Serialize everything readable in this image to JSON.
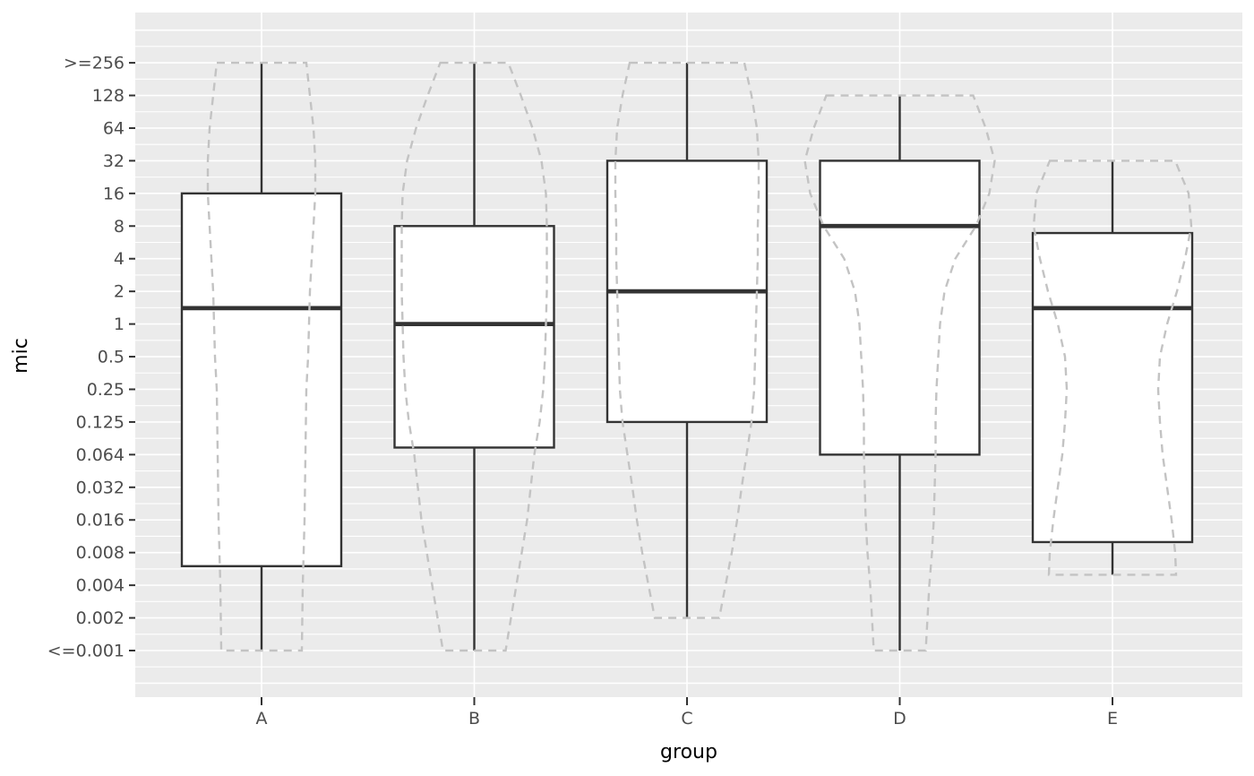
{
  "chart_data": {
    "type": "boxplot",
    "overlay": "violin-outline-dashed",
    "title": "",
    "xlabel": "group",
    "ylabel": "mic",
    "legend": false,
    "grid": true,
    "categories": [
      "A",
      "B",
      "C",
      "D",
      "E"
    ],
    "y_axis": {
      "scale": "log2-mic-dilution-series",
      "tick_values": [
        0.001,
        0.002,
        0.004,
        0.008,
        0.016,
        0.032,
        0.064,
        0.125,
        0.25,
        0.5,
        1,
        2,
        4,
        8,
        16,
        32,
        64,
        128,
        256
      ],
      "tick_labels": [
        "<=0.001",
        "0.002",
        "0.004",
        "0.008",
        "0.016",
        "0.032",
        "0.064",
        "0.125",
        "0.25",
        "0.5",
        "1",
        "2",
        "4",
        "8",
        "16",
        "32",
        "64",
        "128",
        ">=256"
      ]
    },
    "boxplots": [
      {
        "group": "A",
        "whisker_low": 0.001,
        "q1": 0.006,
        "median": 1.4,
        "q3": 16,
        "whisker_high": 256
      },
      {
        "group": "B",
        "whisker_low": 0.001,
        "q1": 0.074,
        "median": 1,
        "q3": 8,
        "whisker_high": 256
      },
      {
        "group": "C",
        "whisker_low": 0.002,
        "q1": 0.125,
        "median": 2,
        "q3": 32,
        "whisker_high": 256
      },
      {
        "group": "D",
        "whisker_low": 0.001,
        "q1": 0.064,
        "median": 8,
        "q3": 32,
        "whisker_high": 128
      },
      {
        "group": "E",
        "whisker_low": 0.005,
        "q1": 0.01,
        "median": 1.4,
        "q3": 6.9,
        "whisker_high": 32
      }
    ],
    "violins": [
      {
        "group": "A",
        "profile": [
          [
            256,
            50
          ],
          [
            64,
            58
          ],
          [
            32,
            60
          ],
          [
            16,
            60
          ],
          [
            8,
            58
          ],
          [
            4,
            56
          ],
          [
            2,
            54
          ],
          [
            1,
            53
          ],
          [
            0.5,
            52
          ],
          [
            0.25,
            50
          ],
          [
            0.064,
            49
          ],
          [
            0.016,
            48
          ],
          [
            0.004,
            46
          ],
          [
            0.001,
            45
          ]
        ]
      },
      {
        "group": "B",
        "profile": [
          [
            256,
            38
          ],
          [
            128,
            52
          ],
          [
            64,
            65
          ],
          [
            32,
            75
          ],
          [
            16,
            80
          ],
          [
            8,
            81
          ],
          [
            4,
            81
          ],
          [
            2,
            81
          ],
          [
            1,
            80
          ],
          [
            0.5,
            79
          ],
          [
            0.25,
            77
          ],
          [
            0.125,
            73
          ],
          [
            0.064,
            67
          ],
          [
            0.032,
            63
          ],
          [
            0.016,
            59
          ],
          [
            0.008,
            53
          ],
          [
            0.004,
            47
          ],
          [
            0.002,
            41
          ],
          [
            0.001,
            35
          ]
        ]
      },
      {
        "group": "C",
        "profile": [
          [
            256,
            64
          ],
          [
            128,
            72
          ],
          [
            64,
            78
          ],
          [
            32,
            80
          ],
          [
            16,
            80
          ],
          [
            8,
            79
          ],
          [
            4,
            79
          ],
          [
            2,
            78
          ],
          [
            1,
            77
          ],
          [
            0.5,
            76
          ],
          [
            0.25,
            75
          ],
          [
            0.125,
            72
          ],
          [
            0.032,
            61
          ],
          [
            0.016,
            56
          ],
          [
            0.008,
            50
          ],
          [
            0.002,
            36
          ]
        ]
      },
      {
        "group": "D",
        "profile": [
          [
            128,
            82
          ],
          [
            64,
            96
          ],
          [
            32,
            106
          ],
          [
            16,
            100
          ],
          [
            8,
            85
          ],
          [
            4,
            62
          ],
          [
            2,
            50
          ],
          [
            1,
            45
          ],
          [
            0.5,
            43
          ],
          [
            0.25,
            41
          ],
          [
            0.125,
            40
          ],
          [
            0.064,
            40
          ],
          [
            0.032,
            39
          ],
          [
            0.016,
            38
          ],
          [
            0.008,
            36
          ],
          [
            0.004,
            33
          ],
          [
            0.001,
            29
          ]
        ]
      },
      {
        "group": "E",
        "profile": [
          [
            32,
            70
          ],
          [
            16,
            85
          ],
          [
            8,
            88
          ],
          [
            4,
            81
          ],
          [
            2,
            72
          ],
          [
            1,
            61
          ],
          [
            0.5,
            53
          ],
          [
            0.25,
            51
          ],
          [
            0.125,
            53
          ],
          [
            0.064,
            56
          ],
          [
            0.032,
            61
          ],
          [
            0.016,
            66
          ],
          [
            0.008,
            70
          ],
          [
            0.005,
            71
          ]
        ]
      }
    ],
    "colors": {
      "panel_bg": "#EBEBEB",
      "grid": "#FFFFFF",
      "box_stroke": "#333333",
      "box_fill": "#FFFFFF",
      "violin_stroke": "#C3C3C3",
      "tick_label": "#4D4D4D",
      "axis_title": "#000000"
    }
  }
}
